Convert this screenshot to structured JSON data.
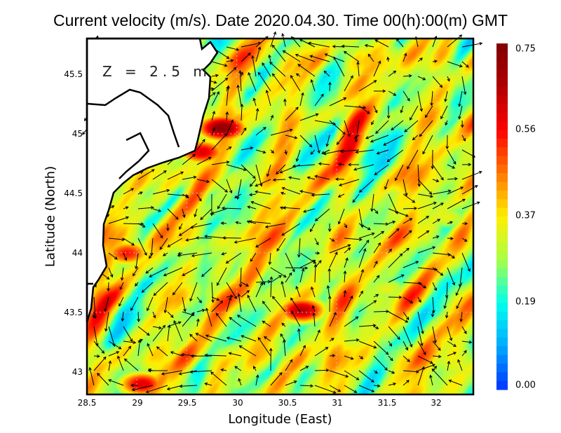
{
  "chart_data": {
    "type": "heatmap",
    "title": "Current velocity (m/s). Date 2020.04.30. Time 00(h):00(m) GMT",
    "xlabel": "Longitude (East)",
    "ylabel": "Latitude (North)",
    "annotation": "Z  =  2.5  m",
    "xlim": [
      28.5,
      32.37
    ],
    "ylim": [
      42.81,
      45.8
    ],
    "xticks": [
      "28.5",
      "29",
      "29.5",
      "30",
      "30.5",
      "31",
      "31.5",
      "32"
    ],
    "yticks": [
      "45.5",
      "45",
      "44.5",
      "44",
      "43.5",
      "43"
    ],
    "grid": true,
    "colorbar": {
      "min": 0,
      "max": 0.75,
      "ticks": [
        "0.75",
        "0.56",
        "0.37",
        "0.19",
        "0.00"
      ],
      "colormap": [
        "#0033ff",
        "#00aaff",
        "#00ffee",
        "#aaff44",
        "#ffee00",
        "#ff7700",
        "#ff0000",
        "#b00000",
        "#800000"
      ]
    },
    "features": [
      {
        "lon": 29.85,
        "lat": 45.05,
        "speed": 0.72
      },
      {
        "lon": 29.65,
        "lat": 44.85,
        "speed": 0.6
      },
      {
        "lon": 30.65,
        "lat": 43.52,
        "speed": 0.65
      },
      {
        "lon": 28.9,
        "lat": 44.0,
        "speed": 0.55
      },
      {
        "lon": 29.05,
        "lat": 42.9,
        "speed": 0.6
      },
      {
        "lon": 30.0,
        "lat": 45.45,
        "speed": 0.35
      },
      {
        "lon": 31.5,
        "lat": 43.7,
        "speed": 0.35
      },
      {
        "lon": 32.1,
        "lat": 44.3,
        "speed": 0.35
      },
      {
        "lon": 30.2,
        "lat": 44.7,
        "speed": 0.3
      },
      {
        "lon": 29.4,
        "lat": 43.2,
        "speed": 0.3
      }
    ]
  }
}
